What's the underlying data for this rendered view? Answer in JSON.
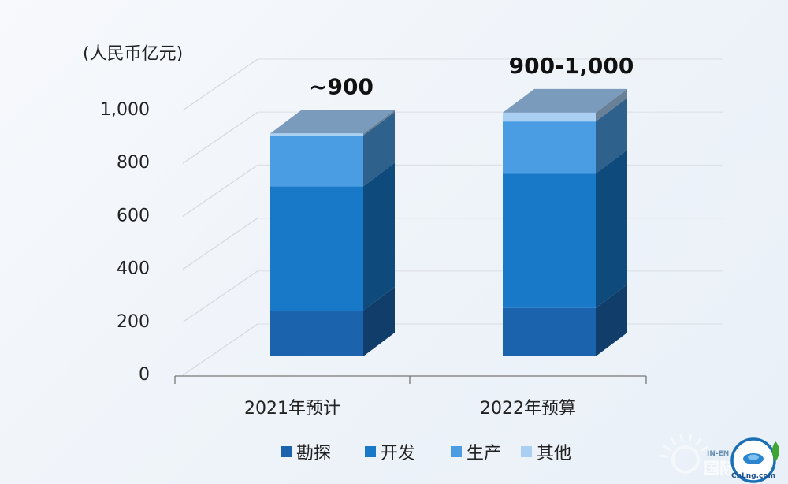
{
  "chart_data": {
    "type": "bar",
    "stacked": true,
    "three_d": true,
    "unit_label": "(人民币亿元)",
    "categories": [
      "2021年预计",
      "2022年预算"
    ],
    "series": [
      {
        "name": "勘探",
        "values": [
          180,
          190
        ],
        "color": "#1c63ad"
      },
      {
        "name": "开发",
        "values": [
          490,
          530
        ],
        "color": "#1779c8"
      },
      {
        "name": "生产",
        "values": [
          200,
          205
        ],
        "color": "#4b9de3"
      },
      {
        "name": "其他",
        "values": [
          8,
          35
        ],
        "color": "#a9d0f2"
      }
    ],
    "totals": [
      "~900",
      "900-1,000"
    ],
    "ylim": [
      0,
      1000
    ],
    "yticks": [
      0,
      200,
      400,
      600,
      800,
      1000
    ],
    "ytick_labels": [
      "0",
      "200",
      "400",
      "600",
      "800",
      "1,000"
    ],
    "grid": true,
    "legend_position": "bottom"
  },
  "watermark": {
    "text_top": "IN-EN",
    "text_bottom": "国际",
    "logo_text": "CnLng.com",
    "colors": {
      "ring": "#1b6fb5",
      "leaf": "#3fa535"
    }
  }
}
